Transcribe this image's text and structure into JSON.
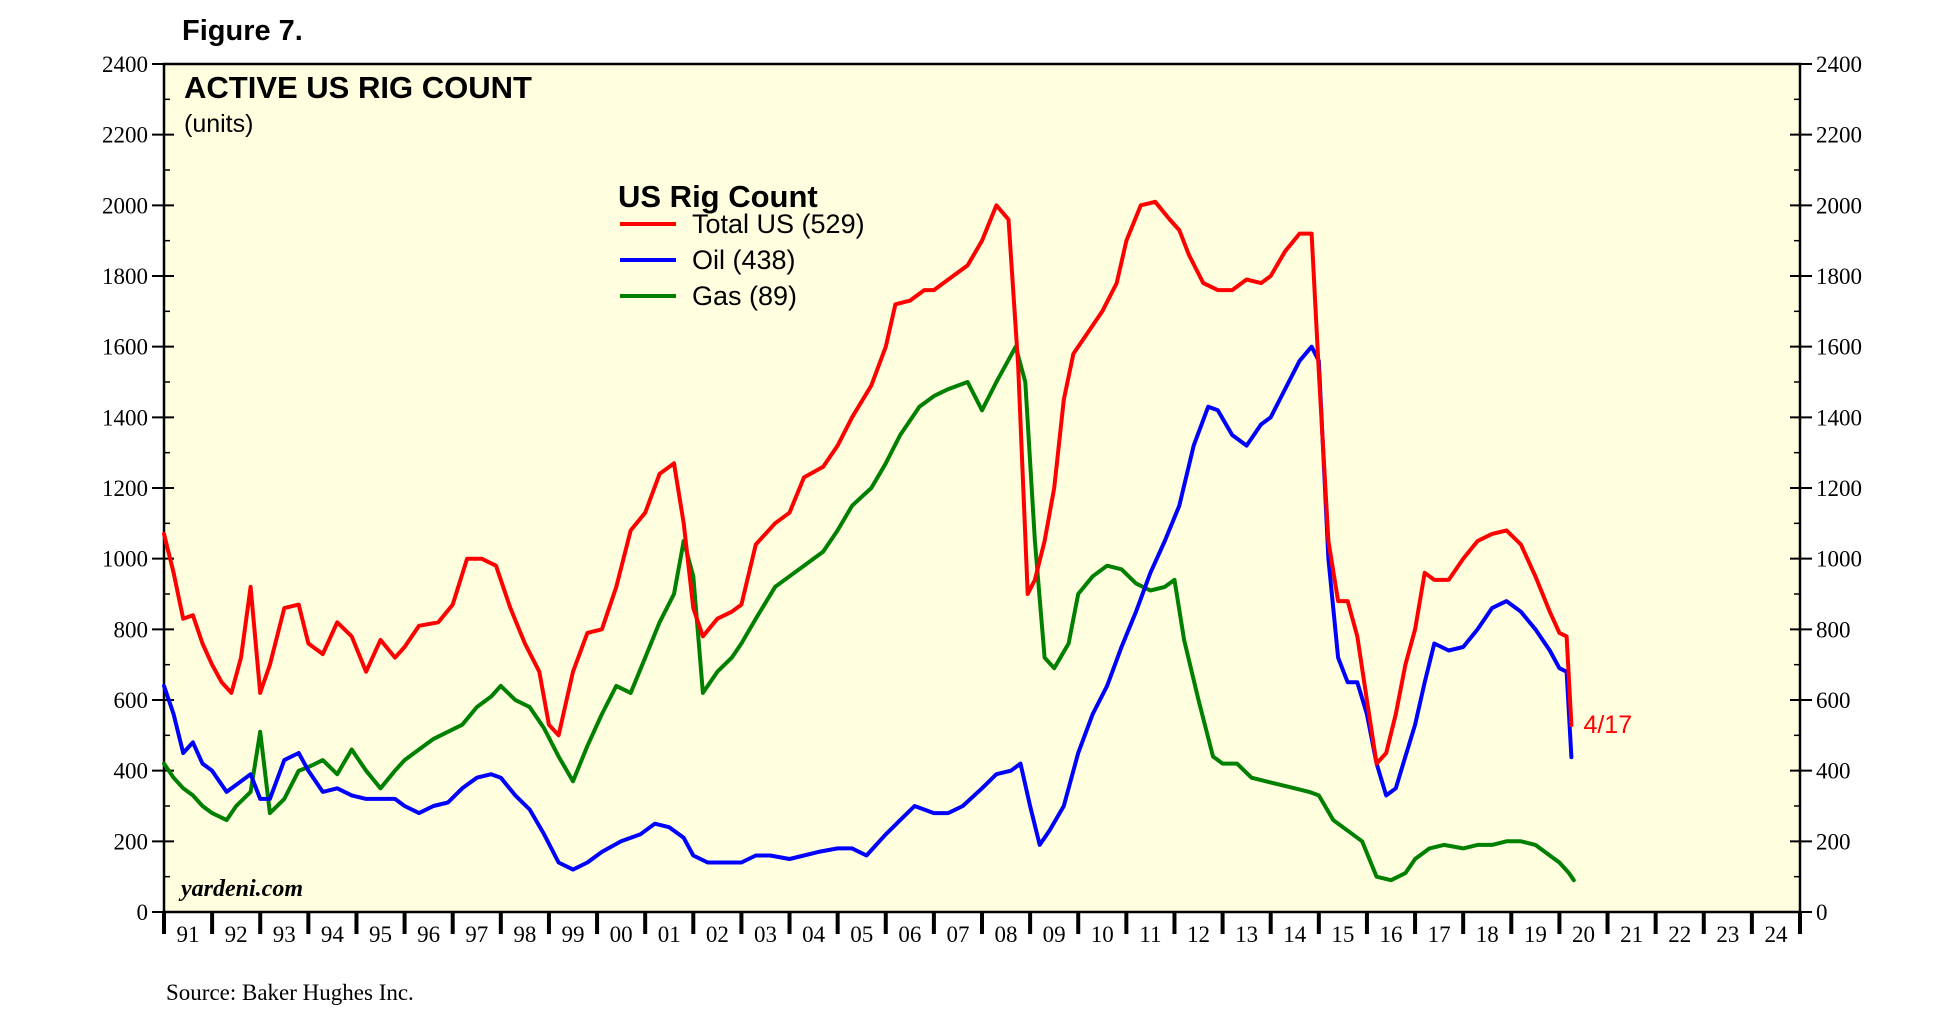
{
  "figure_label": "Figure 7.",
  "source": "Source: Baker Hughes Inc.",
  "watermark": "yardeni.com",
  "end_annotation": "4/17",
  "colors": {
    "panel_bg": "#FFFFE0",
    "total": "#FF0000",
    "oil": "#0000FF",
    "gas": "#008000",
    "axis": "#000000"
  },
  "chart_data": {
    "type": "line",
    "title": "ACTIVE US RIG COUNT",
    "subtitle": "(units)",
    "xlabel": "",
    "ylabel": "",
    "ylim": [
      0,
      2400
    ],
    "yticks": [
      0,
      200,
      400,
      600,
      800,
      1000,
      1200,
      1400,
      1600,
      1800,
      2000,
      2200,
      2400
    ],
    "xlim": [
      1991,
      2025
    ],
    "xtick_labels": [
      "91",
      "92",
      "93",
      "94",
      "95",
      "96",
      "97",
      "98",
      "99",
      "00",
      "01",
      "02",
      "03",
      "04",
      "05",
      "06",
      "07",
      "08",
      "09",
      "10",
      "11",
      "12",
      "13",
      "14",
      "15",
      "16",
      "17",
      "18",
      "19",
      "20",
      "21",
      "22",
      "23",
      "24"
    ],
    "legend_title": "US Rig Count",
    "legend_position": "upper-center-left",
    "grid": false,
    "series": [
      {
        "key": "total",
        "name": "Total US (529)",
        "x": [
          1991.0,
          1991.2,
          1991.4,
          1991.6,
          1991.8,
          1992.0,
          1992.2,
          1992.4,
          1992.6,
          1992.8,
          1993.0,
          1993.2,
          1993.5,
          1993.8,
          1994.0,
          1994.3,
          1994.6,
          1994.9,
          1995.2,
          1995.5,
          1995.8,
          1996.0,
          1996.3,
          1996.7,
          1997.0,
          1997.3,
          1997.6,
          1997.9,
          1998.2,
          1998.5,
          1998.8,
          1999.0,
          1999.2,
          1999.5,
          1999.8,
          2000.1,
          2000.4,
          2000.7,
          2001.0,
          2001.3,
          2001.6,
          2001.8,
          2002.0,
          2002.2,
          2002.5,
          2002.8,
          2003.0,
          2003.3,
          2003.7,
          2004.0,
          2004.3,
          2004.7,
          2005.0,
          2005.3,
          2005.7,
          2006.0,
          2006.2,
          2006.5,
          2006.8,
          2007.0,
          2007.3,
          2007.7,
          2008.0,
          2008.3,
          2008.55,
          2008.75,
          2008.95,
          2009.1,
          2009.3,
          2009.5,
          2009.7,
          2009.9,
          2010.2,
          2010.5,
          2010.8,
          2011.0,
          2011.3,
          2011.6,
          2011.9,
          2012.1,
          2012.3,
          2012.6,
          2012.9,
          2013.2,
          2013.5,
          2013.8,
          2014.0,
          2014.3,
          2014.6,
          2014.85,
          2015.0,
          2015.2,
          2015.4,
          2015.6,
          2015.8,
          2016.0,
          2016.2,
          2016.4,
          2016.6,
          2016.8,
          2017.0,
          2017.2,
          2017.4,
          2017.7,
          2018.0,
          2018.3,
          2018.6,
          2018.9,
          2019.2,
          2019.5,
          2019.8,
          2020.0,
          2020.15,
          2020.25
        ],
        "values": [
          1070,
          960,
          830,
          840,
          760,
          700,
          650,
          620,
          720,
          920,
          620,
          700,
          860,
          870,
          760,
          730,
          820,
          780,
          680,
          770,
          720,
          750,
          810,
          820,
          870,
          1000,
          1000,
          980,
          860,
          760,
          680,
          530,
          500,
          680,
          790,
          800,
          920,
          1080,
          1130,
          1240,
          1270,
          1100,
          860,
          780,
          830,
          850,
          870,
          1040,
          1100,
          1130,
          1230,
          1260,
          1320,
          1400,
          1490,
          1600,
          1720,
          1730,
          1760,
          1760,
          1790,
          1830,
          1900,
          2000,
          1960,
          1550,
          900,
          940,
          1050,
          1200,
          1450,
          1580,
          1640,
          1700,
          1780,
          1900,
          2000,
          2010,
          1960,
          1930,
          1860,
          1780,
          1760,
          1760,
          1790,
          1780,
          1800,
          1870,
          1920,
          1920,
          1530,
          1050,
          880,
          880,
          780,
          600,
          420,
          450,
          560,
          700,
          800,
          960,
          940,
          940,
          1000,
          1050,
          1070,
          1080,
          1040,
          950,
          850,
          790,
          780,
          529
        ]
      },
      {
        "key": "oil",
        "name": "Oil (438)",
        "x": [
          1991.0,
          1991.2,
          1991.4,
          1991.6,
          1991.8,
          1992.0,
          1992.3,
          1992.6,
          1992.8,
          1993.0,
          1993.2,
          1993.5,
          1993.8,
          1994.0,
          1994.3,
          1994.6,
          1994.9,
          1995.2,
          1995.5,
          1995.8,
          1996.0,
          1996.3,
          1996.6,
          1996.9,
          1997.2,
          1997.5,
          1997.8,
          1998.0,
          1998.3,
          1998.6,
          1998.9,
          1999.2,
          1999.5,
          1999.8,
          2000.1,
          2000.5,
          2000.9,
          2001.2,
          2001.5,
          2001.8,
          2002.0,
          2002.3,
          2002.6,
          2003.0,
          2003.3,
          2003.6,
          2004.0,
          2004.3,
          2004.6,
          2005.0,
          2005.3,
          2005.6,
          2006.0,
          2006.3,
          2006.6,
          2007.0,
          2007.3,
          2007.6,
          2008.0,
          2008.3,
          2008.6,
          2008.8,
          2009.0,
          2009.2,
          2009.4,
          2009.7,
          2010.0,
          2010.3,
          2010.6,
          2010.9,
          2011.2,
          2011.5,
          2011.8,
          2012.1,
          2012.4,
          2012.7,
          2012.9,
          2013.2,
          2013.5,
          2013.8,
          2014.0,
          2014.3,
          2014.6,
          2014.85,
          2015.0,
          2015.2,
          2015.4,
          2015.6,
          2015.8,
          2016.0,
          2016.2,
          2016.4,
          2016.6,
          2016.8,
          2017.0,
          2017.2,
          2017.4,
          2017.7,
          2018.0,
          2018.3,
          2018.6,
          2018.9,
          2019.2,
          2019.5,
          2019.8,
          2020.0,
          2020.15,
          2020.25
        ],
        "values": [
          640,
          560,
          450,
          480,
          420,
          400,
          340,
          370,
          390,
          320,
          320,
          430,
          450,
          400,
          340,
          350,
          330,
          320,
          320,
          320,
          300,
          280,
          300,
          310,
          350,
          380,
          390,
          380,
          330,
          290,
          220,
          140,
          120,
          140,
          170,
          200,
          220,
          250,
          240,
          210,
          160,
          140,
          140,
          140,
          160,
          160,
          150,
          160,
          170,
          180,
          180,
          160,
          220,
          260,
          300,
          280,
          280,
          300,
          350,
          390,
          400,
          420,
          300,
          190,
          230,
          300,
          450,
          560,
          640,
          750,
          850,
          960,
          1050,
          1150,
          1320,
          1430,
          1420,
          1350,
          1320,
          1380,
          1400,
          1480,
          1560,
          1600,
          1560,
          1000,
          720,
          650,
          650,
          560,
          420,
          330,
          350,
          440,
          530,
          650,
          760,
          740,
          750,
          800,
          860,
          880,
          850,
          800,
          740,
          690,
          680,
          438
        ]
      },
      {
        "key": "gas",
        "name": "Gas (89)",
        "x": [
          1991.0,
          1991.2,
          1991.4,
          1991.6,
          1991.8,
          1992.0,
          1992.3,
          1992.5,
          1992.8,
          1993.0,
          1993.2,
          1993.5,
          1993.8,
          1994.0,
          1994.3,
          1994.6,
          1994.9,
          1995.2,
          1995.5,
          1995.8,
          1996.0,
          1996.3,
          1996.6,
          1996.9,
          1997.2,
          1997.5,
          1997.8,
          1998.0,
          1998.3,
          1998.6,
          1998.9,
          1999.2,
          1999.5,
          1999.8,
          2000.1,
          2000.4,
          2000.7,
          2001.0,
          2001.3,
          2001.6,
          2001.8,
          2002.0,
          2002.2,
          2002.5,
          2002.8,
          2003.0,
          2003.3,
          2003.7,
          2004.0,
          2004.3,
          2004.7,
          2005.0,
          2005.3,
          2005.7,
          2006.0,
          2006.3,
          2006.7,
          2007.0,
          2007.3,
          2007.7,
          2008.0,
          2008.3,
          2008.5,
          2008.7,
          2008.9,
          2009.1,
          2009.3,
          2009.5,
          2009.8,
          2010.0,
          2010.3,
          2010.6,
          2010.9,
          2011.2,
          2011.5,
          2011.8,
          2012.0,
          2012.2,
          2012.5,
          2012.8,
          2013.0,
          2013.3,
          2013.6,
          2013.9,
          2014.2,
          2014.5,
          2014.8,
          2015.0,
          2015.3,
          2015.6,
          2015.9,
          2016.2,
          2016.5,
          2016.8,
          2017.0,
          2017.3,
          2017.6,
          2018.0,
          2018.3,
          2018.6,
          2018.9,
          2019.2,
          2019.5,
          2019.8,
          2020.0,
          2020.2,
          2020.3
        ],
        "values": [
          420,
          380,
          350,
          330,
          300,
          280,
          260,
          300,
          340,
          510,
          280,
          320,
          400,
          410,
          430,
          390,
          460,
          400,
          350,
          400,
          430,
          460,
          490,
          510,
          530,
          580,
          610,
          640,
          600,
          580,
          520,
          440,
          370,
          470,
          560,
          640,
          620,
          720,
          820,
          900,
          1050,
          950,
          620,
          680,
          720,
          760,
          830,
          920,
          950,
          980,
          1020,
          1080,
          1150,
          1200,
          1270,
          1350,
          1430,
          1460,
          1480,
          1500,
          1420,
          1500,
          1550,
          1600,
          1500,
          1050,
          720,
          690,
          760,
          900,
          950,
          980,
          970,
          930,
          910,
          920,
          940,
          770,
          600,
          440,
          420,
          420,
          380,
          370,
          360,
          350,
          340,
          330,
          260,
          230,
          200,
          100,
          90,
          110,
          150,
          180,
          190,
          180,
          190,
          190,
          200,
          200,
          190,
          160,
          140,
          110,
          90
        ]
      }
    ]
  }
}
